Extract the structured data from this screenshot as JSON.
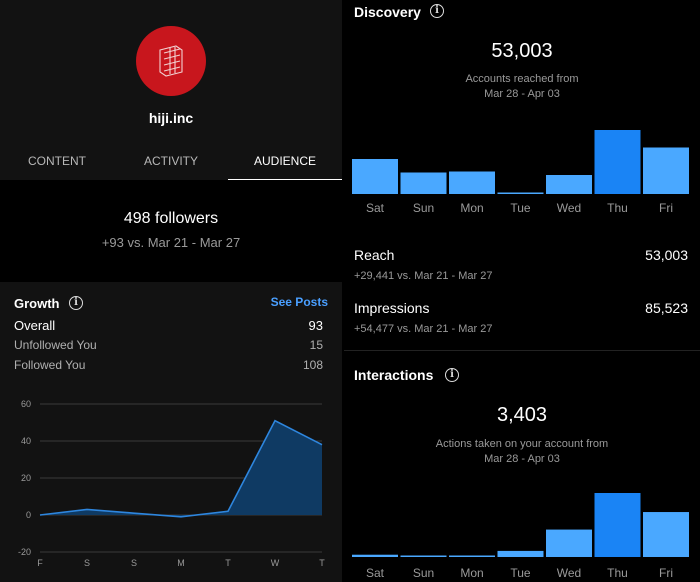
{
  "profile": {
    "username": "hiji.inc"
  },
  "tabs": [
    {
      "label": "CONTENT",
      "active": false
    },
    {
      "label": "ACTIVITY",
      "active": false
    },
    {
      "label": "AUDIENCE",
      "active": true
    }
  ],
  "followers": {
    "count_label": "498 followers",
    "delta_label": "+93 vs. Mar 21 - Mar 27"
  },
  "growth": {
    "title": "Growth",
    "see_posts_label": "See Posts",
    "rows": [
      {
        "label": "Overall",
        "value": "93"
      },
      {
        "label": "Unfollowed You",
        "value": "15"
      },
      {
        "label": "Followed You",
        "value": "108"
      }
    ]
  },
  "discovery": {
    "title": "Discovery",
    "total": "53,003",
    "caption_line1": "Accounts reached from",
    "caption_line2": "Mar 28 - Apr 03",
    "reach": {
      "label": "Reach",
      "value": "53,003",
      "delta": "+29,441 vs. Mar 21 - Mar 27"
    },
    "impressions": {
      "label": "Impressions",
      "value": "85,523",
      "delta": "+54,477 vs. Mar 21 - Mar 27"
    }
  },
  "interactions": {
    "title": "Interactions",
    "total": "3,403",
    "caption_line1": "Actions taken on your account from",
    "caption_line2": "Mar 28 - Apr 03"
  },
  "colors": {
    "accent": "#4a9fff",
    "bar": "#4aa8ff",
    "bar_highlight": "#1a84f5",
    "area": "#0f3a63",
    "line": "#2e86de",
    "avatar": "#c8161d"
  },
  "chart_data": [
    {
      "type": "area",
      "categories": [
        "F",
        "S",
        "S",
        "M",
        "T",
        "W",
        "T"
      ],
      "values": [
        0,
        3,
        1,
        -1,
        2,
        51,
        38
      ],
      "ylim": [
        -20,
        60
      ],
      "yticks": [
        60,
        40,
        20,
        0,
        -20
      ],
      "grid": true
    },
    {
      "type": "bar",
      "categories": [
        "Sat",
        "Sun",
        "Mon",
        "Tue",
        "Wed",
        "Thu",
        "Fri"
      ],
      "values": [
        7000,
        4300,
        4500,
        0,
        3800,
        12800,
        9300
      ],
      "highlight_index": 5
    },
    {
      "type": "bar",
      "categories": [
        "Sat",
        "Sun",
        "Mon",
        "Tue",
        "Wed",
        "Thu",
        "Fri"
      ],
      "values": [
        30,
        15,
        15,
        80,
        360,
        840,
        590
      ],
      "highlight_index": 5
    }
  ]
}
